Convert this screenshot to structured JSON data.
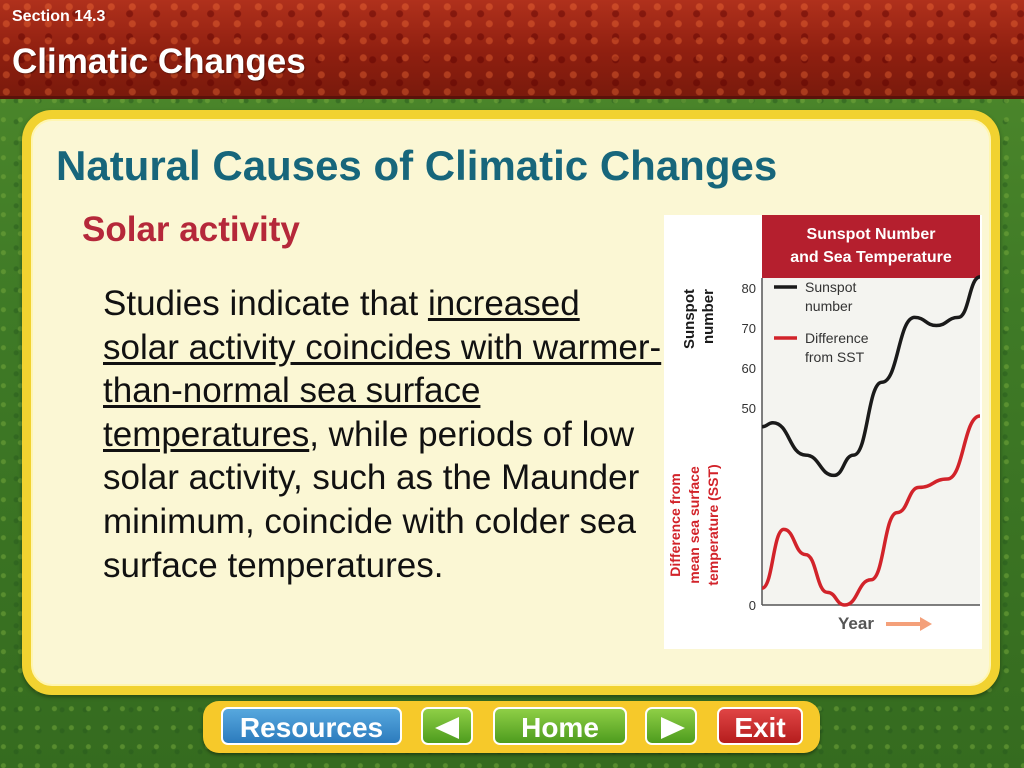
{
  "header": {
    "section": "Section 14.3",
    "title": "Climatic Changes"
  },
  "slide": {
    "title": "Natural Causes of Climatic Changes",
    "subtitle": "Solar activity",
    "body": {
      "part1": "Studies indicate that ",
      "underlined": "increased solar activity coincides with warmer-than-normal sea surface temperatures",
      "part2": ", while periods of low solar activity, such as the Maunder minimum, coincide with colder sea surface temperatures."
    }
  },
  "chart_data": {
    "type": "line",
    "title": "Sunspot Number and Sea Temperature",
    "xlabel": "Year",
    "ylabel_left": "Sunspot number",
    "ylabel_left_lower": "Difference from mean sea surface temperature (SST)",
    "y_ticks": [
      "80",
      "70",
      "60",
      "50",
      "0"
    ],
    "legend": [
      {
        "name": "Sunspot number",
        "color": "#1a1a1a"
      },
      {
        "name": "Difference from SST",
        "color": "#d2232a"
      }
    ],
    "series": [
      {
        "name": "Sunspot number",
        "color": "#1a1a1a",
        "x": [
          0,
          0.05,
          0.2,
          0.33,
          0.42,
          0.55,
          0.7,
          0.8,
          0.9,
          1.0
        ],
        "values": [
          45,
          46,
          38,
          33,
          38,
          56,
          72,
          70,
          72,
          82
        ]
      },
      {
        "name": "Difference from SST",
        "color": "#d2232a",
        "x": [
          0,
          0.1,
          0.2,
          0.3,
          0.38,
          0.5,
          0.62,
          0.72,
          0.85,
          1.0
        ],
        "values": [
          4,
          18,
          12,
          3,
          0,
          6,
          22,
          28,
          30,
          45
        ]
      }
    ]
  },
  "nav": {
    "resources": "Resources",
    "home": "Home",
    "exit": "Exit"
  },
  "colors": {
    "title": "#17667b",
    "subtitle": "#b5283a",
    "chart_header": "#b51f2e"
  }
}
